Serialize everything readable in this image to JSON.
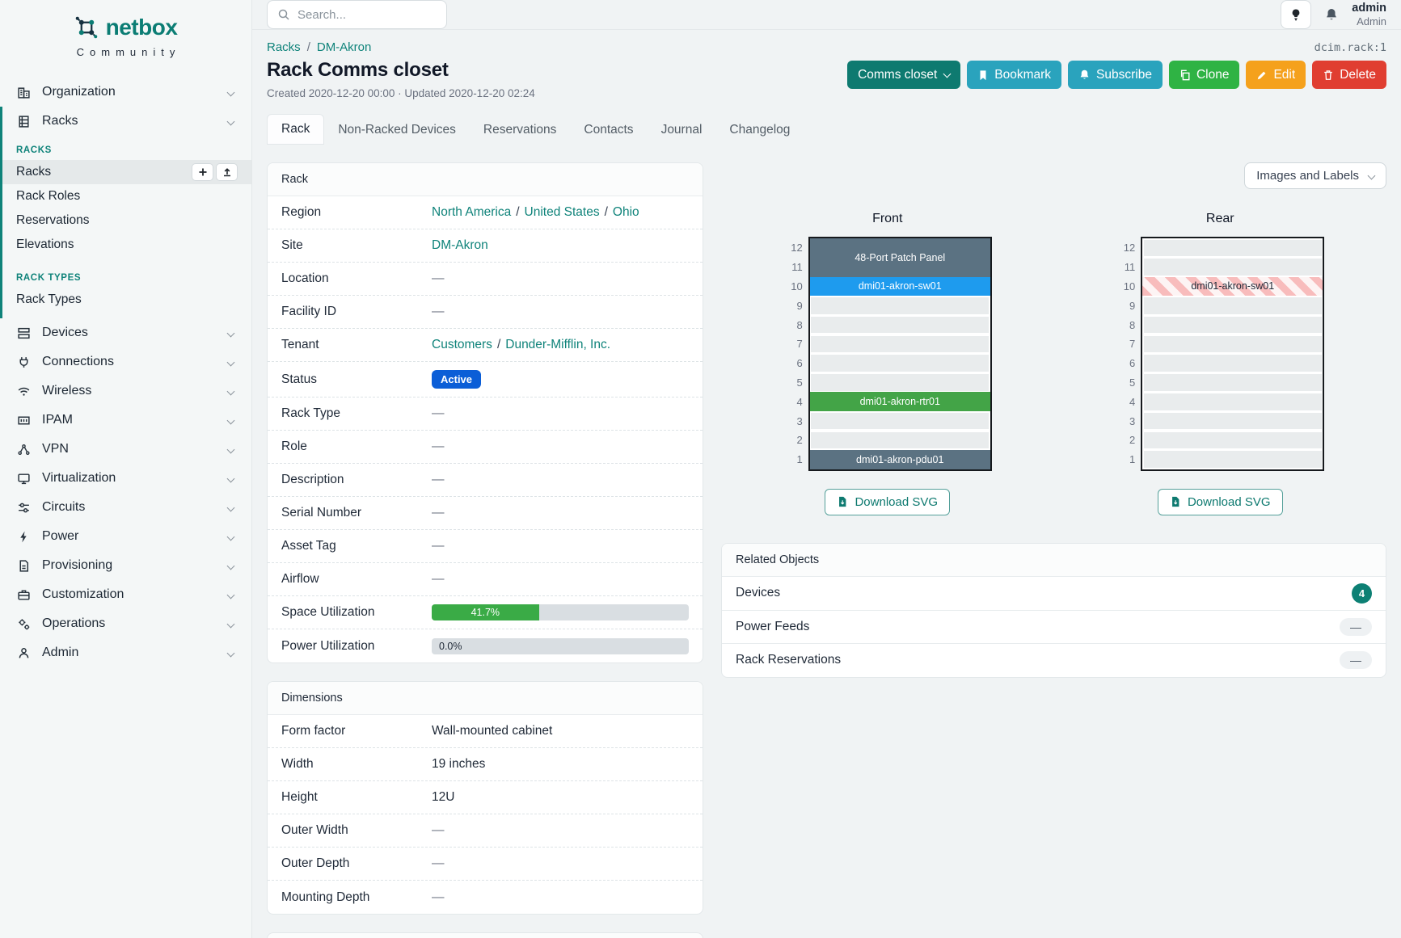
{
  "brand": {
    "name": "netbox",
    "subtitle": "Community"
  },
  "topbar": {
    "search_placeholder": "Search...",
    "user_name": "admin",
    "user_role": "Admin"
  },
  "sidebar": {
    "organization": {
      "label": "Organization",
      "icon": "building-icon"
    },
    "racks_group": {
      "label": "Racks",
      "icon": "rack-icon"
    },
    "sections": [
      {
        "title": "RACKS",
        "items": [
          {
            "label": "Racks",
            "active": true
          },
          {
            "label": "Rack Roles"
          },
          {
            "label": "Reservations"
          },
          {
            "label": "Elevations"
          }
        ]
      },
      {
        "title": "RACK TYPES",
        "items": [
          {
            "label": "Rack Types"
          }
        ]
      }
    ],
    "racks_item_actions": {
      "add": "+",
      "import": "import"
    },
    "groups": [
      {
        "label": "Devices",
        "icon": "devices-icon"
      },
      {
        "label": "Connections",
        "icon": "plug-icon"
      },
      {
        "label": "Wireless",
        "icon": "wifi-icon"
      },
      {
        "label": "IPAM",
        "icon": "ipam-icon"
      },
      {
        "label": "VPN",
        "icon": "vpn-icon"
      },
      {
        "label": "Virtualization",
        "icon": "monitor-icon"
      },
      {
        "label": "Circuits",
        "icon": "sliders-icon"
      },
      {
        "label": "Power",
        "icon": "bolt-icon"
      },
      {
        "label": "Provisioning",
        "icon": "document-icon"
      },
      {
        "label": "Customization",
        "icon": "briefcase-icon"
      },
      {
        "label": "Operations",
        "icon": "gears-icon"
      },
      {
        "label": "Admin",
        "icon": "users-icon"
      }
    ]
  },
  "page": {
    "breadcrumb": {
      "items": [
        "Racks",
        "DM-Akron"
      ],
      "separator": "/"
    },
    "object_id": "dcim.rack:1",
    "title": "Rack Comms closet",
    "meta": "Created 2020-12-20 00:00 · Updated 2020-12-20 02:24",
    "actions": {
      "rename": "Comms closet",
      "bookmark": "Bookmark",
      "subscribe": "Subscribe",
      "clone": "Clone",
      "edit": "Edit",
      "delete": "Delete"
    },
    "tabs": [
      "Rack",
      "Non-Racked Devices",
      "Reservations",
      "Contacts",
      "Journal",
      "Changelog"
    ]
  },
  "rack_panel": {
    "title": "Rack",
    "region": {
      "label": "Region",
      "links": [
        "North America",
        "United States",
        "Ohio"
      ],
      "separator": "/"
    },
    "site": {
      "label": "Site",
      "link": "DM-Akron"
    },
    "location": {
      "label": "Location",
      "value": "—"
    },
    "facility_id": {
      "label": "Facility ID",
      "value": "—"
    },
    "tenant": {
      "label": "Tenant",
      "links": [
        "Customers",
        "Dunder-Mifflin, Inc."
      ],
      "separator": "/"
    },
    "status": {
      "label": "Status",
      "badge": "Active",
      "badge_color": "#0b5ed7"
    },
    "rack_type": {
      "label": "Rack Type",
      "value": "—"
    },
    "role": {
      "label": "Role",
      "value": "—"
    },
    "description": {
      "label": "Description",
      "value": "—"
    },
    "serial_number": {
      "label": "Serial Number",
      "value": "—"
    },
    "asset_tag": {
      "label": "Asset Tag",
      "value": "—"
    },
    "airflow": {
      "label": "Airflow",
      "value": "—"
    },
    "space_utilization": {
      "label": "Space Utilization",
      "percent": 41.7,
      "text": "41.7%",
      "color": "#3aab46"
    },
    "power_utilization": {
      "label": "Power Utilization",
      "percent": 0.0,
      "text": "0.0%"
    }
  },
  "dimensions_panel": {
    "title": "Dimensions",
    "rows": [
      {
        "label": "Form factor",
        "value": "Wall-mounted cabinet"
      },
      {
        "label": "Width",
        "value": "19 inches"
      },
      {
        "label": "Height",
        "value": "12U"
      },
      {
        "label": "Outer Width",
        "value": "—"
      },
      {
        "label": "Outer Depth",
        "value": "—"
      },
      {
        "label": "Mounting Depth",
        "value": "—"
      }
    ]
  },
  "elevations": {
    "toggle_label": "Images and Labels",
    "download_label": "Download SVG",
    "units_total": 12,
    "front": {
      "title": "Front",
      "devices": [
        {
          "top_unit": 12,
          "span": 2,
          "label": "48-Port Patch Panel",
          "color": "#5b7282",
          "text_color": "#ffffff"
        },
        {
          "top_unit": 10,
          "span": 1,
          "label": "dmi01-akron-sw01",
          "color": "#1e9bee",
          "text_color": "#ffffff"
        },
        {
          "top_unit": 4,
          "span": 1,
          "label": "dmi01-akron-rtr01",
          "color": "#43a447",
          "text_color": "#ffffff"
        },
        {
          "top_unit": 1,
          "span": 1,
          "label": "dmi01-akron-pdu01",
          "color": "#5b7282",
          "text_color": "#ffffff"
        }
      ]
    },
    "rear": {
      "title": "Rear",
      "devices": [
        {
          "top_unit": 10,
          "span": 1,
          "label": "dmi01-akron-sw01",
          "hatched": true,
          "text_color": "#1f2937"
        }
      ]
    }
  },
  "related": {
    "title": "Related Objects",
    "rows": [
      {
        "label": "Devices",
        "count": "4"
      },
      {
        "label": "Power Feeds",
        "count": "—"
      },
      {
        "label": "Rack Reservations",
        "count": "—"
      }
    ],
    "count_color": "#0d8074"
  }
}
